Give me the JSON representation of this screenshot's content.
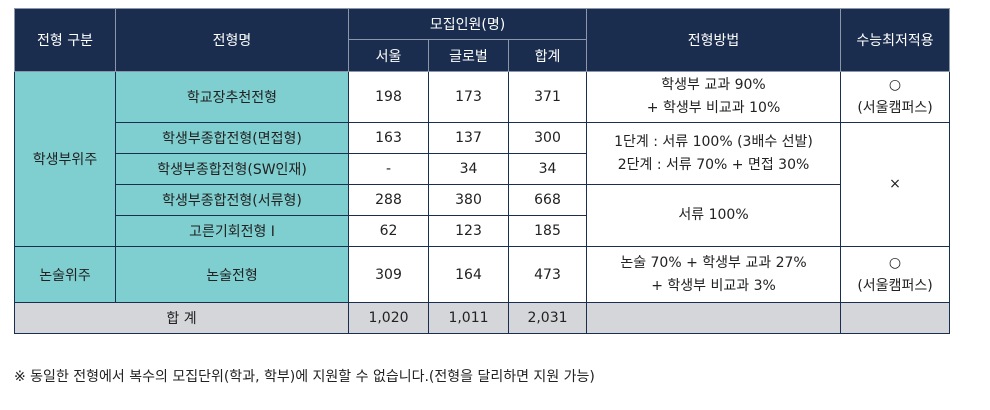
{
  "headers": {
    "category": "전형 구분",
    "name": "전형명",
    "quota": "모집인원(명)",
    "seoul": "서울",
    "global": "글로벌",
    "sum": "합계",
    "method": "전형방법",
    "csat": "수능최저적용"
  },
  "groups": {
    "student_record": "학생부위주",
    "essay": "논술위주"
  },
  "rows": [
    {
      "name": "학교장추천전형",
      "seoul": "198",
      "global": "173",
      "sum": "371"
    },
    {
      "name": "학생부종합전형(면접형)",
      "seoul": "163",
      "global": "137",
      "sum": "300"
    },
    {
      "name": "학생부종합전형(SW인재)",
      "seoul": "-",
      "global": "34",
      "sum": "34"
    },
    {
      "name": "학생부종합전형(서류형)",
      "seoul": "288",
      "global": "380",
      "sum": "668"
    },
    {
      "name": "고른기회전형 Ⅰ",
      "seoul": "62",
      "global": "123",
      "sum": "185"
    },
    {
      "name": "논술전형",
      "seoul": "309",
      "global": "164",
      "sum": "473"
    }
  ],
  "methods": {
    "school": [
      "학생부 교과 90%",
      "+ 학생부 비교과 10%"
    ],
    "comprehensive": [
      "1단계 : 서류 100% (3배수 선발)",
      "2단계 : 서류 70% + 면접 30%"
    ],
    "documents": "서류 100%",
    "essay": [
      "논술 70% + 학생부 교과 27%",
      "+ 학생부 비교과 3%"
    ]
  },
  "csat": {
    "school": [
      "○",
      "(서울캠퍼스)"
    ],
    "middle": "×",
    "essay": [
      "○",
      "(서울캠퍼스)"
    ]
  },
  "total": {
    "label": "합 계",
    "seoul": "1,020",
    "global": "1,011",
    "sum": "2,031"
  },
  "note": "※ 동일한 전형에서 복수의 모집단위(학과, 학부)에 지원할 수 없습니다.(전형을 달리하면 지원 가능)"
}
